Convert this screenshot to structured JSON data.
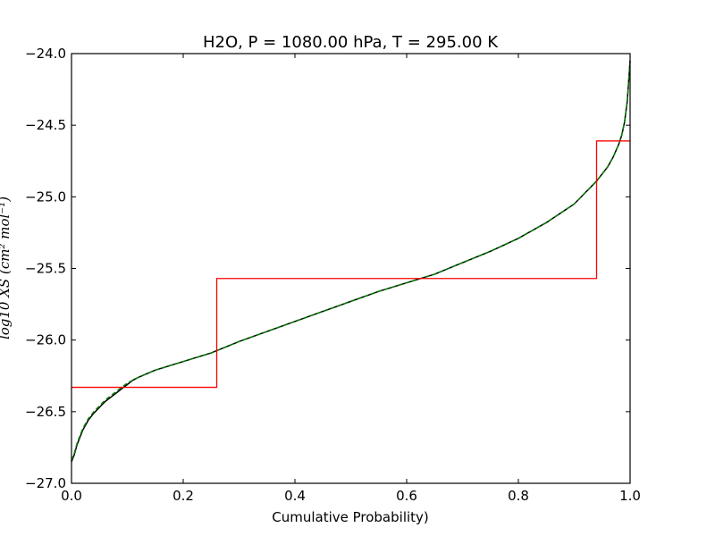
{
  "chart_data": {
    "type": "line",
    "title": "H2O, P = 1080.00 hPa, T = 295.00 K",
    "xlabel": "Cumulative Probability)",
    "ylabel": "log10 XS (cm² mol⁻¹)",
    "xlim": [
      0.0,
      1.0
    ],
    "ylim": [
      -27.0,
      -24.0
    ],
    "x_ticks": [
      0.0,
      0.2,
      0.4,
      0.6,
      0.8,
      1.0
    ],
    "x_tick_labels": [
      "0.0",
      "0.2",
      "0.4",
      "0.6",
      "0.8",
      "1.0"
    ],
    "y_ticks": [
      -27.0,
      -26.5,
      -26.0,
      -25.5,
      -25.0,
      -24.5,
      -24.0
    ],
    "y_tick_labels": [
      "−27.0",
      "−26.5",
      "−26.0",
      "−25.5",
      "−25.0",
      "−24.5",
      "−24.0"
    ],
    "grid": false,
    "series": [
      {
        "kind": "line",
        "color": "#000000",
        "x": [
          0.0,
          0.005,
          0.01,
          0.02,
          0.03,
          0.04,
          0.05,
          0.06,
          0.07,
          0.08,
          0.09,
          0.1,
          0.11,
          0.12,
          0.15,
          0.2,
          0.25,
          0.3,
          0.35,
          0.4,
          0.45,
          0.5,
          0.55,
          0.6,
          0.65,
          0.7,
          0.75,
          0.8,
          0.85,
          0.9,
          0.92,
          0.94,
          0.96,
          0.97,
          0.98,
          0.985,
          0.99,
          0.995,
          1.0
        ],
        "y": [
          -26.85,
          -26.8,
          -26.73,
          -26.63,
          -26.56,
          -26.51,
          -26.47,
          -26.43,
          -26.4,
          -26.37,
          -26.34,
          -26.31,
          -26.28,
          -26.26,
          -26.21,
          -26.15,
          -26.09,
          -26.01,
          -25.94,
          -25.87,
          -25.8,
          -25.73,
          -25.66,
          -25.6,
          -25.54,
          -25.46,
          -25.38,
          -25.29,
          -25.18,
          -25.05,
          -24.97,
          -24.89,
          -24.79,
          -24.72,
          -24.63,
          -24.57,
          -24.48,
          -24.33,
          -24.05
        ]
      },
      {
        "kind": "line",
        "color": "#008000",
        "x": [
          0.0,
          0.005,
          0.01,
          0.02,
          0.03,
          0.04,
          0.05,
          0.06,
          0.07,
          0.08,
          0.09,
          0.1,
          0.11,
          0.12,
          0.15,
          0.2,
          0.25,
          0.3,
          0.35,
          0.4,
          0.45,
          0.5,
          0.55,
          0.6,
          0.65,
          0.7,
          0.75,
          0.8,
          0.85,
          0.9,
          0.92,
          0.94,
          0.96,
          0.97,
          0.98,
          0.985,
          0.99,
          0.995,
          1.0
        ],
        "y": [
          -26.84,
          -26.79,
          -26.72,
          -26.62,
          -26.55,
          -26.5,
          -26.46,
          -26.42,
          -26.39,
          -26.36,
          -26.33,
          -26.3,
          -26.28,
          -26.26,
          -26.21,
          -26.15,
          -26.09,
          -26.01,
          -25.94,
          -25.87,
          -25.8,
          -25.73,
          -25.66,
          -25.6,
          -25.54,
          -25.46,
          -25.38,
          -25.29,
          -25.18,
          -25.05,
          -24.97,
          -24.89,
          -24.79,
          -24.72,
          -24.63,
          -24.57,
          -24.48,
          -24.33,
          -24.05
        ]
      },
      {
        "kind": "step",
        "color": "#ff0000",
        "x": [
          0.0,
          0.26,
          0.26,
          0.94,
          0.94,
          1.0
        ],
        "y": [
          -26.33,
          -26.33,
          -25.57,
          -25.57,
          -24.61,
          -24.61
        ]
      }
    ]
  }
}
